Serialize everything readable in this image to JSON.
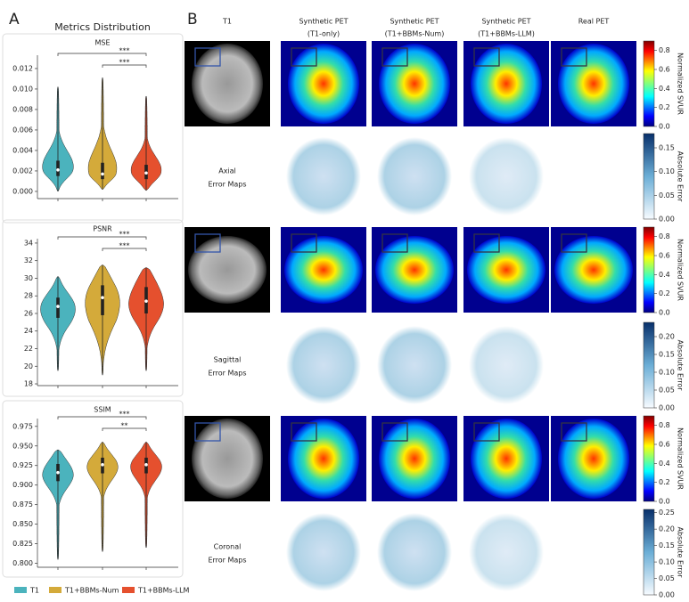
{
  "panel_a": {
    "label": "A",
    "title": "Metrics Distribution"
  },
  "chart_data": [
    {
      "type": "violin",
      "title": "MSE",
      "ylim": [
        -0.0007,
        0.0133
      ],
      "yticks": [
        {
          "value": 0,
          "label": "0.000"
        },
        {
          "value": 0.002,
          "label": "0.002"
        },
        {
          "value": 0.004,
          "label": "0.004"
        },
        {
          "value": 0.006,
          "label": "0.006"
        },
        {
          "value": 0.008,
          "label": "0.008"
        },
        {
          "value": 0.01,
          "label": "0.010"
        },
        {
          "value": 0.012,
          "label": "0.012"
        }
      ],
      "series": [
        {
          "name": "T1",
          "color": "#4bb3bd",
          "min": 0.0,
          "q1": 0.0015,
          "median": 0.0021,
          "q3": 0.003,
          "max": 0.0102
        },
        {
          "name": "T1+BBMs-Num",
          "color": "#d4aa3a",
          "min": 0.0002,
          "q1": 0.0012,
          "median": 0.0017,
          "q3": 0.0028,
          "max": 0.0111
        },
        {
          "name": "T1+BBMs-LLM",
          "color": "#e5502e",
          "min": 0.0001,
          "q1": 0.0012,
          "median": 0.0018,
          "q3": 0.0026,
          "max": 0.0093
        }
      ],
      "significance": [
        {
          "from": 0,
          "to": 2,
          "label": "***"
        },
        {
          "from": 1,
          "to": 2,
          "label": "***"
        }
      ]
    },
    {
      "type": "violin",
      "title": "PSNR",
      "ylim": [
        17.8,
        34.5
      ],
      "yticks": [
        18,
        20,
        22,
        24,
        26,
        28,
        30,
        32,
        34
      ],
      "series": [
        {
          "name": "T1",
          "color": "#4bb3bd",
          "min": 19.5,
          "q1": 25.5,
          "median": 26.8,
          "q3": 27.8,
          "max": 30.2
        },
        {
          "name": "T1+BBMs-Num",
          "color": "#d4aa3a",
          "min": 19,
          "q1": 25.8,
          "median": 27.8,
          "q3": 29.2,
          "max": 31.5
        },
        {
          "name": "T1+BBMs-LLM",
          "color": "#e5502e",
          "min": 19.5,
          "q1": 26,
          "median": 27.4,
          "q3": 29,
          "max": 31.2
        }
      ],
      "significance": [
        {
          "from": 0,
          "to": 2,
          "label": "***"
        },
        {
          "from": 1,
          "to": 2,
          "label": "***"
        }
      ]
    },
    {
      "type": "violin",
      "title": "SSIM",
      "ylim": [
        0.795,
        0.985
      ],
      "yticks": [
        {
          "value": 0.8,
          "label": "0.800"
        },
        {
          "value": 0.825,
          "label": "0.825"
        },
        {
          "value": 0.85,
          "label": "0.850"
        },
        {
          "value": 0.875,
          "label": "0.875"
        },
        {
          "value": 0.9,
          "label": "0.900"
        },
        {
          "value": 0.925,
          "label": "0.925"
        },
        {
          "value": 0.95,
          "label": "0.950"
        },
        {
          "value": 0.975,
          "label": "0.975"
        }
      ],
      "series": [
        {
          "name": "T1",
          "color": "#4bb3bd",
          "min": 0.805,
          "q1": 0.905,
          "median": 0.916,
          "q3": 0.927,
          "max": 0.945
        },
        {
          "name": "T1+BBMs-Num",
          "color": "#d4aa3a",
          "min": 0.815,
          "q1": 0.915,
          "median": 0.926,
          "q3": 0.935,
          "max": 0.955
        },
        {
          "name": "T1+BBMs-LLM",
          "color": "#e5502e",
          "min": 0.82,
          "q1": 0.915,
          "median": 0.926,
          "q3": 0.935,
          "max": 0.955
        }
      ],
      "significance": [
        {
          "from": 0,
          "to": 2,
          "label": "***"
        },
        {
          "from": 1,
          "to": 2,
          "label": "**"
        }
      ]
    }
  ],
  "panel_b": {
    "label": "B",
    "columns": [
      [
        "T1"
      ],
      [
        "Synthetic PET",
        "(T1-only)"
      ],
      [
        "Synthetic PET",
        "(T1+BBMs-Num)"
      ],
      [
        "Synthetic PET",
        "(T1+BBMs-LLM)"
      ],
      [
        "Real PET"
      ]
    ],
    "row_labels": [
      [
        "Axial",
        "Error Maps"
      ],
      [
        "Sagittal",
        "Error Maps"
      ],
      [
        "Coronal",
        "Error Maps"
      ]
    ],
    "colorbars": [
      {
        "label": "Normalized SVUR",
        "colormap": "jet",
        "ylim": [
          0,
          0.9
        ],
        "yticks": [
          {
            "value": 0,
            "label": "0.0"
          },
          {
            "value": 0.2,
            "label": "0.2"
          },
          {
            "value": 0.4,
            "label": "0.4"
          },
          {
            "value": 0.6,
            "label": "0.6"
          },
          {
            "value": 0.8,
            "label": "0.8"
          }
        ]
      },
      {
        "label": "Absolute Error",
        "colormap": "blues",
        "ylim": [
          0,
          0.18
        ],
        "yticks": [
          {
            "value": 0,
            "label": "0.00"
          },
          {
            "value": 0.05,
            "label": "0.05"
          },
          {
            "value": 0.1,
            "label": "0.10"
          },
          {
            "value": 0.15,
            "label": "0.15"
          }
        ]
      },
      {
        "label": "Normalized SVUR",
        "colormap": "jet",
        "ylim": [
          0,
          0.9
        ],
        "yticks": [
          {
            "value": 0,
            "label": "0.0"
          },
          {
            "value": 0.2,
            "label": "0.2"
          },
          {
            "value": 0.4,
            "label": "0.4"
          },
          {
            "value": 0.6,
            "label": "0.6"
          },
          {
            "value": 0.8,
            "label": "0.8"
          }
        ]
      },
      {
        "label": "Absolute Error",
        "colormap": "blues",
        "ylim": [
          0,
          0.24
        ],
        "yticks": [
          {
            "value": 0,
            "label": "0.00"
          },
          {
            "value": 0.05,
            "label": "0.05"
          },
          {
            "value": 0.1,
            "label": "0.10"
          },
          {
            "value": 0.15,
            "label": "0.15"
          },
          {
            "value": 0.2,
            "label": "0.20"
          }
        ]
      },
      {
        "label": "Normalized SVUR",
        "colormap": "jet",
        "ylim": [
          0,
          0.9
        ],
        "yticks": [
          {
            "value": 0,
            "label": "0.0"
          },
          {
            "value": 0.2,
            "label": "0.2"
          },
          {
            "value": 0.4,
            "label": "0.4"
          },
          {
            "value": 0.6,
            "label": "0.6"
          },
          {
            "value": 0.8,
            "label": "0.8"
          }
        ]
      },
      {
        "label": "Absolute Error",
        "colormap": "blues",
        "ylim": [
          0,
          0.26
        ],
        "yticks": [
          {
            "value": 0,
            "label": "0.00"
          },
          {
            "value": 0.05,
            "label": "0.05"
          },
          {
            "value": 0.1,
            "label": "0.10"
          },
          {
            "value": 0.15,
            "label": "0.15"
          },
          {
            "value": 0.2,
            "label": "0.20"
          },
          {
            "value": 0.25,
            "label": "0.25"
          }
        ]
      }
    ]
  }
}
